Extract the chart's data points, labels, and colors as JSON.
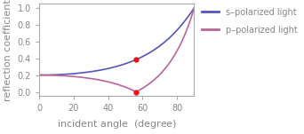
{
  "title": "",
  "xlabel": "incident angle",
  "xlabel_unit": "(degree)",
  "ylabel": "reflection coefficient",
  "xlim": [
    0,
    90
  ],
  "ylim": [
    -0.05,
    1.05
  ],
  "xticks": [
    0,
    20,
    40,
    60,
    80
  ],
  "yticks": [
    0.0,
    0.2,
    0.4,
    0.6,
    0.8,
    1.0
  ],
  "s_color": "#5555bb",
  "p_color": "#bb6699",
  "dot_color": "#ee1111",
  "n1": 1.0,
  "n2": 1.5,
  "legend_s": "s–polarized light",
  "legend_p": "p–polarized light",
  "figsize": [
    3.42,
    1.51
  ],
  "dpi": 100,
  "background_color": "#ffffff",
  "font_color": "#888888",
  "spine_color": "#aaaaaa",
  "tick_labelsize": 7,
  "axis_labelsize": 8
}
